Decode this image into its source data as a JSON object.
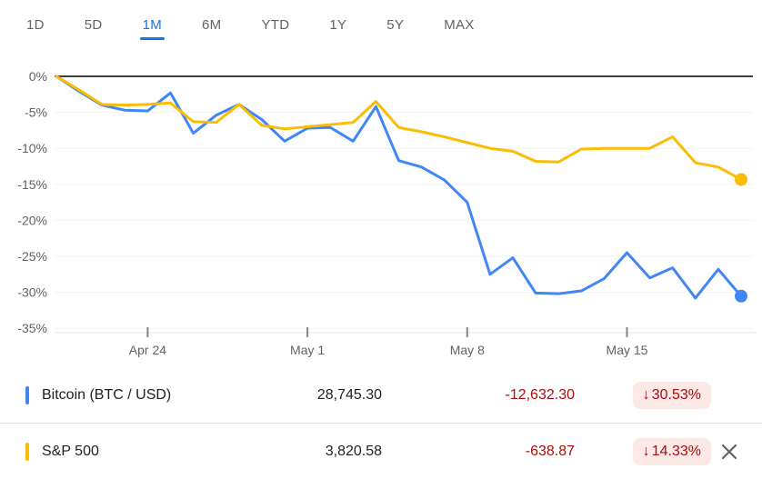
{
  "tabs": {
    "items": [
      {
        "label": "1D",
        "active": false
      },
      {
        "label": "5D",
        "active": false
      },
      {
        "label": "1M",
        "active": true
      },
      {
        "label": "6M",
        "active": false
      },
      {
        "label": "YTD",
        "active": false
      },
      {
        "label": "1Y",
        "active": false
      },
      {
        "label": "5Y",
        "active": false
      },
      {
        "label": "MAX",
        "active": false
      }
    ]
  },
  "colors": {
    "active_tab": "#1a73e8",
    "bitcoin_line": "#4285f4",
    "sp500_line": "#fbbc04",
    "negative_text": "#a50e0e",
    "negative_badge_bg": "#fce8e6",
    "axis_text": "#5f6368",
    "zero_line": "#3c4043",
    "gridline": "#f1f3f4"
  },
  "chart_data": {
    "type": "line",
    "title": "",
    "xlabel": "",
    "ylabel": "",
    "ylim": [
      -35,
      0
    ],
    "grid": true,
    "legend_position": "bottom",
    "x": [
      "Apr 20",
      "Apr 21",
      "Apr 22",
      "Apr 23",
      "Apr 24",
      "Apr 25",
      "Apr 26",
      "Apr 27",
      "Apr 28",
      "Apr 29",
      "Apr 30",
      "May 1",
      "May 2",
      "May 3",
      "May 4",
      "May 5",
      "May 6",
      "May 7",
      "May 8",
      "May 9",
      "May 10",
      "May 11",
      "May 12",
      "May 13",
      "May 14",
      "May 15",
      "May 16",
      "May 17",
      "May 18",
      "May 19",
      "May 20"
    ],
    "y_ticks": [
      {
        "label": "0%",
        "value": 0
      },
      {
        "label": "-5%",
        "value": -5
      },
      {
        "label": "-10%",
        "value": -10
      },
      {
        "label": "-15%",
        "value": -15
      },
      {
        "label": "-20%",
        "value": -20
      },
      {
        "label": "-25%",
        "value": -25
      },
      {
        "label": "-30%",
        "value": -30
      },
      {
        "label": "-35%",
        "value": -35
      }
    ],
    "x_ticks": [
      {
        "label": "Apr 24",
        "index": 4
      },
      {
        "label": "May 1",
        "index": 11
      },
      {
        "label": "May 8",
        "index": 18
      },
      {
        "label": "May 15",
        "index": 25
      }
    ],
    "series": [
      {
        "name": "Bitcoin (BTC / USD)",
        "color": "#4285f4",
        "values": [
          0,
          -2.1,
          -4.0,
          -4.7,
          -4.8,
          -2.3,
          -7.9,
          -5.4,
          -3.9,
          -6.0,
          -9.0,
          -7.2,
          -7.1,
          -9.0,
          -4.2,
          -11.7,
          -12.6,
          -14.4,
          -17.5,
          -27.5,
          -25.2,
          -30.1,
          -30.2,
          -29.8,
          -28.1,
          -24.5,
          -28.0,
          -26.6,
          -30.8,
          -26.8,
          -30.53
        ]
      },
      {
        "name": "S&P 500",
        "color": "#fbbc04",
        "values": [
          0,
          -1.9,
          -3.9,
          -4.0,
          -3.9,
          -3.7,
          -6.3,
          -6.4,
          -3.9,
          -6.8,
          -7.3,
          -7.0,
          -6.7,
          -6.4,
          -3.5,
          -7.1,
          -7.7,
          -8.4,
          -9.2,
          -10.0,
          -10.4,
          -11.8,
          -11.9,
          -10.1,
          -10.0,
          -10.0,
          -10.0,
          -8.4,
          -12.0,
          -12.6,
          -14.33
        ]
      }
    ]
  },
  "legend": {
    "rows": [
      {
        "name": "Bitcoin (BTC / USD)",
        "marker_color": "#4285f4",
        "value": "28,745.30",
        "change": "-12,632.30",
        "change_direction": "down",
        "change_arrow": "↓",
        "change_pct": "30.53%"
      },
      {
        "name": "S&P 500",
        "marker_color": "#fbbc04",
        "value": "3,820.58",
        "change": "-638.87",
        "change_direction": "down",
        "change_arrow": "↓",
        "change_pct": "14.33%"
      }
    ]
  }
}
